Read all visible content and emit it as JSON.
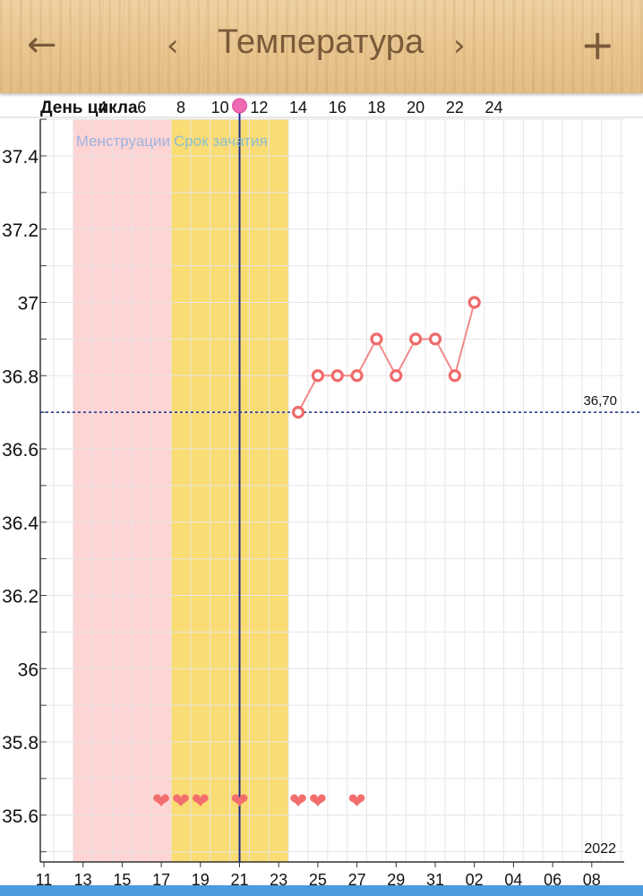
{
  "header": {
    "title": "Температура",
    "back_icon": "arrow-left-icon",
    "prev_icon": "chevron-left-icon",
    "next_icon": "chevron-right-icon",
    "add_icon": "plus-icon"
  },
  "chart_data": {
    "type": "line",
    "title": "",
    "xlabel": "День цикла",
    "ylabel": "",
    "ylim": [
      35.5,
      37.5
    ],
    "y_ticks": [
      "37.4",
      "37.2",
      "37",
      "36.8",
      "36.6",
      "36.4",
      "36.2",
      "36",
      "35.8",
      "35.6"
    ],
    "cycle_day_ticks": [
      "4",
      "6",
      "8",
      "10",
      "12",
      "14",
      "16",
      "18",
      "20",
      "22",
      "24"
    ],
    "date_ticks": [
      "11",
      "13",
      "15",
      "17",
      "19",
      "21",
      "23",
      "25",
      "27",
      "29",
      "31",
      "02",
      "04",
      "06",
      "08"
    ],
    "year": "2022",
    "grid": true,
    "bands": [
      {
        "label": "Менструации",
        "from_day": 3,
        "to_day": 8,
        "color": "#ffd4d4",
        "label_color": "#9bb3e0"
      },
      {
        "label": "Срок зачатия",
        "from_day": 8,
        "to_day": 14,
        "color": "#fadc74",
        "label_color": "#8bbfd0"
      }
    ],
    "current_day": 11,
    "current_day_color": "#1a2a8a",
    "baseline": {
      "value": 36.7,
      "label": "36,70",
      "color": "#1a2a8a"
    },
    "series": [
      {
        "color": "#f28a8a",
        "x": [
          14,
          15,
          16,
          17,
          18,
          19,
          20,
          21,
          22,
          23
        ],
        "values": [
          36.7,
          36.8,
          36.8,
          36.8,
          36.9,
          36.8,
          36.9,
          36.9,
          36.8,
          37.0
        ]
      }
    ],
    "hearts": {
      "days": [
        7,
        8,
        9,
        11,
        14,
        15,
        17
      ],
      "color": "#f26e6e"
    }
  }
}
